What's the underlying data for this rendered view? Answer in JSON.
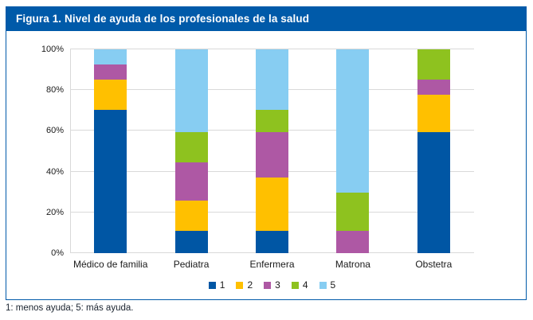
{
  "figure": {
    "title": "Figura 1. Nivel de ayuda de los profesionales de la salud",
    "footnote": "1: menos ayuda; 5: más ayuda."
  },
  "colors": {
    "header_bar": "#005AA9",
    "box_border": "#005AA9",
    "grid": "#D9D9D9",
    "axis_text": "#1a1a1a"
  },
  "chart_data": {
    "type": "bar",
    "stacked": true,
    "title": "Figura 1. Nivel de ayuda de los profesionales de la salud",
    "xlabel": "",
    "ylabel": "",
    "ylim": [
      0,
      100
    ],
    "grid": true,
    "legend_position": "bottom",
    "yticks": [
      {
        "value": 0,
        "label": "0%"
      },
      {
        "value": 20,
        "label": "20%"
      },
      {
        "value": 40,
        "label": "40%"
      },
      {
        "value": 60,
        "label": "60%"
      },
      {
        "value": 80,
        "label": "80%"
      },
      {
        "value": 100,
        "label": "100%"
      }
    ],
    "categories": [
      "Médico de familia",
      "Pediatra",
      "Enfermera",
      "Matrona",
      "Obstetra"
    ],
    "series": [
      {
        "name": "1",
        "color": "#0056A4",
        "values": [
          70.4,
          11.1,
          11.1,
          0,
          59.3
        ]
      },
      {
        "name": "2",
        "color": "#FFC000",
        "values": [
          14.8,
          14.8,
          25.9,
          0,
          18.5
        ]
      },
      {
        "name": "3",
        "color": "#AE58A4",
        "values": [
          7.4,
          18.5,
          22.2,
          11.1,
          7.4
        ]
      },
      {
        "name": "4",
        "color": "#8EC21F",
        "values": [
          0,
          14.8,
          11.1,
          18.5,
          14.8
        ]
      },
      {
        "name": "5",
        "color": "#87CDF2",
        "values": [
          7.4,
          40.7,
          29.6,
          70.4,
          0
        ]
      }
    ]
  }
}
